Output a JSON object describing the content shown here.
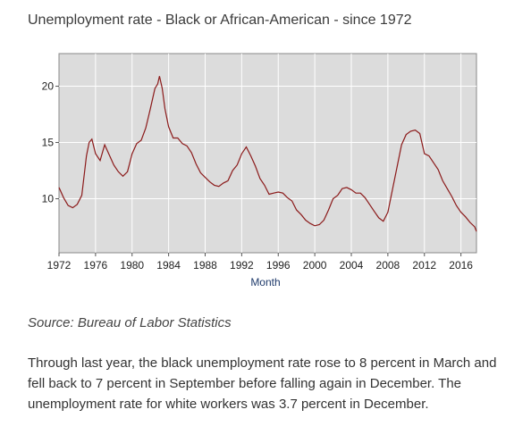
{
  "article": {
    "title": "Unemployment rate - Black or African-American - since 1972",
    "source": "Source: Bureau of Labor Statistics",
    "paragraph": "Through last year, the black unemployment rate rose to 8 percent in March and fell back to 7 percent in September before falling again in December. The unemployment rate for white workers was 3.7 percent in December."
  },
  "colors": {
    "plot_background": "#dcdcdc",
    "grid": "#ffffff",
    "line": "#8b1a1a",
    "axis_label": "#1f3a6b"
  },
  "chart_data": {
    "type": "line",
    "title": "",
    "xlabel": "Month",
    "ylabel": "",
    "xlim": [
      1972,
      2017.7
    ],
    "ylim": [
      5.2,
      22.9
    ],
    "x_ticks": [
      "1972",
      "1976",
      "1980",
      "1984",
      "1988",
      "1992",
      "1996",
      "2000",
      "2004",
      "2008",
      "2012",
      "2016"
    ],
    "y_ticks": [
      "10",
      "15",
      "20"
    ],
    "grid": true,
    "series": [
      {
        "x": [
          1972.0,
          1972.5,
          1973.0,
          1973.5,
          1974.0,
          1974.5,
          1975.0,
          1975.3,
          1975.6,
          1976.0,
          1976.5,
          1977.0,
          1977.5,
          1978.0,
          1978.5,
          1979.0,
          1979.5,
          1980.0,
          1980.5,
          1981.0,
          1981.5,
          1982.0,
          1982.5,
          1982.8,
          1983.0,
          1983.3,
          1983.6,
          1984.0,
          1984.5,
          1985.0,
          1985.5,
          1986.0,
          1986.5,
          1987.0,
          1987.5,
          1988.0,
          1988.5,
          1989.0,
          1989.5,
          1990.0,
          1990.5,
          1991.0,
          1991.5,
          1992.0,
          1992.5,
          1993.0,
          1993.5,
          1994.0,
          1994.5,
          1995.0,
          1995.5,
          1996.0,
          1996.5,
          1997.0,
          1997.5,
          1998.0,
          1998.5,
          1999.0,
          1999.5,
          2000.0,
          2000.5,
          2001.0,
          2001.5,
          2002.0,
          2002.5,
          2003.0,
          2003.5,
          2004.0,
          2004.5,
          2005.0,
          2005.5,
          2006.0,
          2006.5,
          2007.0,
          2007.5,
          2008.0,
          2008.5,
          2009.0,
          2009.5,
          2010.0,
          2010.5,
          2011.0,
          2011.5,
          2012.0,
          2012.5,
          2013.0,
          2013.5,
          2014.0,
          2014.5,
          2015.0,
          2015.5,
          2016.0,
          2016.5,
          2017.0,
          2017.5,
          2017.7
        ],
        "values": [
          11.0,
          10.1,
          9.4,
          9.2,
          9.5,
          10.3,
          13.8,
          15.0,
          15.3,
          14.0,
          13.4,
          14.8,
          13.9,
          13.0,
          12.4,
          12.0,
          12.4,
          14.0,
          14.9,
          15.2,
          16.3,
          18.0,
          19.8,
          20.2,
          20.9,
          19.8,
          18.0,
          16.4,
          15.4,
          15.4,
          14.9,
          14.7,
          14.1,
          13.1,
          12.3,
          11.9,
          11.5,
          11.2,
          11.1,
          11.4,
          11.6,
          12.5,
          13.0,
          14.0,
          14.6,
          13.8,
          12.9,
          11.8,
          11.2,
          10.4,
          10.5,
          10.6,
          10.5,
          10.1,
          9.8,
          9.0,
          8.6,
          8.1,
          7.8,
          7.6,
          7.7,
          8.1,
          9.0,
          10.0,
          10.3,
          10.9,
          11.0,
          10.8,
          10.5,
          10.5,
          10.1,
          9.5,
          8.9,
          8.3,
          8.0,
          8.8,
          10.8,
          12.8,
          14.8,
          15.7,
          16.0,
          16.1,
          15.8,
          14.0,
          13.8,
          13.2,
          12.6,
          11.6,
          10.9,
          10.2,
          9.4,
          8.8,
          8.4,
          7.9,
          7.5,
          7.1
        ]
      }
    ]
  }
}
